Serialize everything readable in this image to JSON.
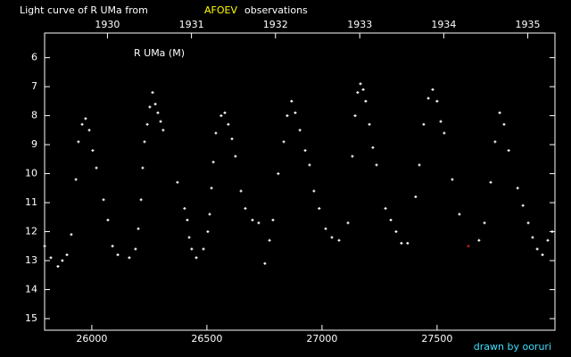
{
  "chart_data": {
    "type": "scatter",
    "title": "Light curve of R UMa from",
    "source": "AFOEV",
    "title_suffix": "observations",
    "label": "R UMa (M)",
    "credit": "drawn by ooruri",
    "xlim": [
      25795,
      28012
    ],
    "ylim": [
      15.4,
      5.15
    ],
    "xticks": [
      26000,
      26500,
      27000,
      27500
    ],
    "x2ticks": [
      {
        "value": 26068,
        "label": "1930"
      },
      {
        "value": 26433,
        "label": "1931"
      },
      {
        "value": 26798,
        "label": "1932"
      },
      {
        "value": 27164,
        "label": "1933"
      },
      {
        "value": 27529,
        "label": "1934"
      },
      {
        "value": 27894,
        "label": "1935"
      }
    ],
    "yticks": [
      6,
      7,
      8,
      9,
      10,
      11,
      12,
      13,
      14,
      15
    ],
    "series": [
      {
        "color": "#ffffff",
        "x": [
          25795,
          25822,
          25853,
          25872,
          25892,
          25911,
          25931,
          25942,
          25958,
          25973,
          25989,
          26004,
          26020,
          26051,
          26070,
          26090,
          26113,
          26163,
          26190,
          26202,
          26214,
          26221,
          26229,
          26241,
          26252,
          26264,
          26276,
          26287,
          26299,
          26310,
          26372,
          26403,
          26415,
          26423,
          26434,
          26454,
          26485,
          26504,
          26512,
          26520,
          26528,
          26539,
          26562,
          26578,
          26593,
          26609,
          26624,
          26648,
          26667,
          26698,
          26725,
          26752,
          26772,
          26787,
          26810,
          26834,
          26849,
          26868,
          26884,
          26904,
          26927,
          26946,
          26965,
          26988,
          27016,
          27043,
          27074,
          27113,
          27132,
          27144,
          27155,
          27167,
          27179,
          27190,
          27206,
          27221,
          27237,
          27276,
          27299,
          27322,
          27345,
          27372,
          27407,
          27423,
          27442,
          27462,
          27481,
          27500,
          27516,
          27531,
          27566,
          27597,
          27682,
          27706,
          27733,
          27752,
          27772,
          27791,
          27811,
          27850,
          27873,
          27896,
          27915,
          27935,
          27958,
          27981,
          28000
        ],
        "values": [
          12.5,
          12.9,
          13.2,
          13.0,
          12.8,
          12.1,
          10.2,
          8.9,
          8.3,
          8.1,
          8.5,
          9.2,
          9.8,
          10.9,
          11.6,
          12.5,
          12.8,
          12.9,
          12.6,
          11.9,
          10.9,
          9.8,
          8.9,
          8.3,
          7.7,
          7.2,
          7.6,
          7.9,
          8.2,
          8.5,
          10.3,
          11.2,
          11.6,
          12.2,
          12.6,
          12.9,
          12.6,
          12.0,
          11.4,
          10.5,
          9.6,
          8.6,
          8.0,
          7.9,
          8.3,
          8.8,
          9.4,
          10.6,
          11.2,
          11.6,
          11.7,
          13.1,
          12.3,
          11.6,
          10.0,
          8.9,
          8.0,
          7.5,
          7.9,
          8.5,
          9.2,
          9.7,
          10.6,
          11.2,
          11.9,
          12.2,
          12.3,
          11.7,
          9.4,
          8.0,
          7.2,
          6.9,
          7.1,
          7.5,
          8.3,
          9.1,
          9.7,
          11.2,
          11.6,
          12.0,
          12.4,
          12.4,
          10.8,
          9.7,
          8.3,
          7.4,
          7.1,
          7.5,
          8.2,
          8.6,
          10.2,
          11.4,
          12.3,
          11.7,
          10.3,
          8.9,
          7.9,
          8.3,
          9.2,
          10.5,
          11.1,
          11.7,
          12.2,
          12.6,
          12.8,
          12.3,
          12.0
        ]
      },
      {
        "color": "#d02010",
        "x": [
          27636
        ],
        "values": [
          12.5
        ]
      }
    ]
  }
}
